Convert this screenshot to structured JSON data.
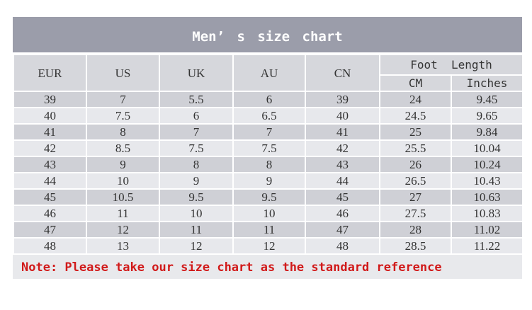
{
  "title": "Men’ s  size  chart",
  "headers": {
    "eur": "EUR",
    "us": "US",
    "uk": "UK",
    "au": "AU",
    "cn": "CN",
    "foot_length": "Foot  Length",
    "cm": "CM",
    "inches": "Inches"
  },
  "rows": [
    [
      "39",
      "7",
      "5.5",
      "6",
      "39",
      "24",
      "9.45"
    ],
    [
      "40",
      "7.5",
      "6",
      "6.5",
      "40",
      "24.5",
      "9.65"
    ],
    [
      "41",
      "8",
      "7",
      "7",
      "41",
      "25",
      "9.84"
    ],
    [
      "42",
      "8.5",
      "7.5",
      "7.5",
      "42",
      "25.5",
      "10.04"
    ],
    [
      "43",
      "9",
      "8",
      "8",
      "43",
      "26",
      "10.24"
    ],
    [
      "44",
      "10",
      "9",
      "9",
      "44",
      "26.5",
      "10.43"
    ],
    [
      "45",
      "10.5",
      "9.5",
      "9.5",
      "45",
      "27",
      "10.63"
    ],
    [
      "46",
      "11",
      "10",
      "10",
      "46",
      "27.5",
      "10.83"
    ],
    [
      "47",
      "12",
      "11",
      "11",
      "47",
      "28",
      "11.02"
    ],
    [
      "48",
      "13",
      "12",
      "12",
      "48",
      "28.5",
      "11.22"
    ]
  ],
  "note": "Note: Please take our size chart as the standard reference",
  "colors": {
    "title_bg": "#9b9daa",
    "note_text": "#d11a1a"
  }
}
